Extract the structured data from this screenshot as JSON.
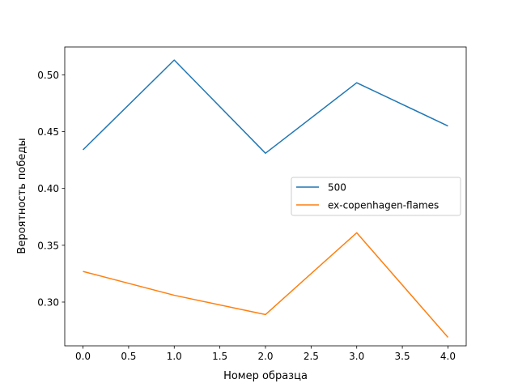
{
  "chart_data": {
    "type": "line",
    "title": "",
    "xlabel": "Номер образца",
    "ylabel": "Вероятность победы",
    "xlim": [
      -0.2,
      4.2
    ],
    "ylim": [
      0.2615,
      0.5245
    ],
    "x": [
      0,
      1,
      2,
      3,
      4
    ],
    "x_ticks": [
      0.0,
      0.5,
      1.0,
      1.5,
      2.0,
      2.5,
      3.0,
      3.5,
      4.0
    ],
    "x_tick_labels": [
      "0.0",
      "0.5",
      "1.0",
      "1.5",
      "2.0",
      "2.5",
      "3.0",
      "3.5",
      "4.0"
    ],
    "y_ticks": [
      0.3,
      0.35,
      0.4,
      0.45,
      0.5
    ],
    "y_tick_labels": [
      "0.30",
      "0.35",
      "0.40",
      "0.45",
      "0.50"
    ],
    "grid": false,
    "legend_position": "center-right",
    "series": [
      {
        "name": "500",
        "color": "#1f77b4",
        "values": [
          0.434,
          0.513,
          0.431,
          0.493,
          0.455
        ]
      },
      {
        "name": "ex-copenhagen-flames",
        "color": "#ff7f0e",
        "values": [
          0.327,
          0.306,
          0.289,
          0.361,
          0.269
        ]
      }
    ]
  }
}
